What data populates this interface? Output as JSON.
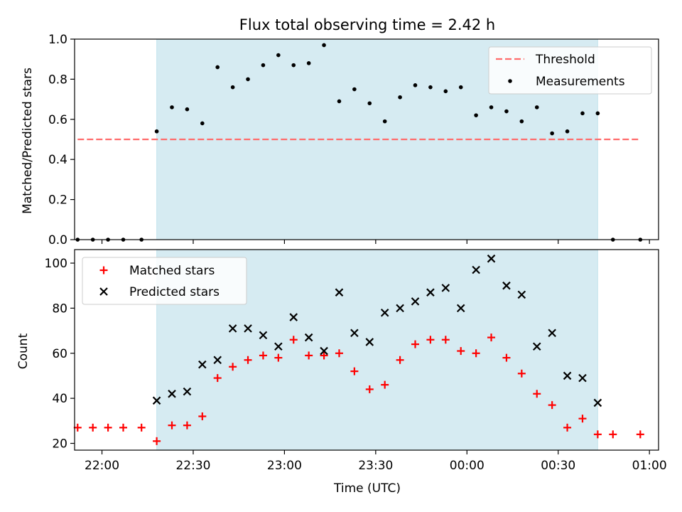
{
  "chart_data": [
    {
      "type": "scatter",
      "title": "Flux total observing time = 2.42 h",
      "xlabel": "",
      "ylabel": "Matched/Predicted stars",
      "xlim": [
        "21:51",
        "01:03"
      ],
      "ylim": [
        0,
        1.0
      ],
      "yticks": [
        "0.0",
        "0.2",
        "0.4",
        "0.6",
        "0.8",
        "1.0"
      ],
      "xticks": [
        "22:00",
        "22:30",
        "23:00",
        "23:30",
        "00:00",
        "00:30",
        "01:00"
      ],
      "shaded_span": [
        "22:18",
        "00:43"
      ],
      "shade_color": "#add8e6",
      "threshold": {
        "name": "Threshold",
        "value": 0.5,
        "x": [
          "21:52",
          "00:57"
        ],
        "color": "#ff6b6b",
        "style": "dashed"
      },
      "legend": {
        "placement": "top-right",
        "entries": [
          "Threshold",
          "Measurements"
        ]
      },
      "series": [
        {
          "name": "Measurements",
          "marker": "dot",
          "color": "#000000",
          "points": [
            [
              "21:52",
              0.0
            ],
            [
              "21:57",
              0.0
            ],
            [
              "22:02",
              0.0
            ],
            [
              "22:07",
              0.0
            ],
            [
              "22:13",
              0.0
            ],
            [
              "22:18",
              0.54
            ],
            [
              "22:23",
              0.66
            ],
            [
              "22:28",
              0.65
            ],
            [
              "22:33",
              0.58
            ],
            [
              "22:38",
              0.86
            ],
            [
              "22:43",
              0.76
            ],
            [
              "22:48",
              0.8
            ],
            [
              "22:53",
              0.87
            ],
            [
              "22:58",
              0.92
            ],
            [
              "23:03",
              0.87
            ],
            [
              "23:08",
              0.88
            ],
            [
              "23:13",
              0.97
            ],
            [
              "23:18",
              0.69
            ],
            [
              "23:23",
              0.75
            ],
            [
              "23:28",
              0.68
            ],
            [
              "23:33",
              0.59
            ],
            [
              "23:38",
              0.71
            ],
            [
              "23:43",
              0.77
            ],
            [
              "23:48",
              0.76
            ],
            [
              "23:53",
              0.74
            ],
            [
              "23:58",
              0.76
            ],
            [
              "00:03",
              0.62
            ],
            [
              "00:08",
              0.66
            ],
            [
              "00:13",
              0.64
            ],
            [
              "00:18",
              0.59
            ],
            [
              "00:23",
              0.66
            ],
            [
              "00:28",
              0.53
            ],
            [
              "00:33",
              0.54
            ],
            [
              "00:38",
              0.63
            ],
            [
              "00:43",
              0.63
            ],
            [
              "00:48",
              0.0
            ],
            [
              "00:57",
              0.0
            ]
          ]
        }
      ]
    },
    {
      "type": "scatter",
      "title": "",
      "xlabel": "Time (UTC)",
      "ylabel": "Count",
      "xlim": [
        "21:51",
        "01:03"
      ],
      "ylim": [
        17,
        106
      ],
      "yticks": [
        "20",
        "40",
        "60",
        "80",
        "100"
      ],
      "xticks": [
        "22:00",
        "22:30",
        "23:00",
        "23:30",
        "00:00",
        "00:30",
        "01:00"
      ],
      "shaded_span": [
        "22:18",
        "00:43"
      ],
      "shade_color": "#add8e6",
      "legend": {
        "placement": "top-left",
        "entries": [
          "Matched stars",
          "Predicted stars"
        ]
      },
      "series": [
        {
          "name": "Matched stars",
          "marker": "plus",
          "color": "#ff0000",
          "points": [
            [
              "21:52",
              27
            ],
            [
              "21:57",
              27
            ],
            [
              "22:02",
              27
            ],
            [
              "22:07",
              27
            ],
            [
              "22:13",
              27
            ],
            [
              "22:18",
              21
            ],
            [
              "22:23",
              28
            ],
            [
              "22:28",
              28
            ],
            [
              "22:33",
              32
            ],
            [
              "22:38",
              49
            ],
            [
              "22:43",
              54
            ],
            [
              "22:48",
              57
            ],
            [
              "22:53",
              59
            ],
            [
              "22:58",
              58
            ],
            [
              "23:03",
              66
            ],
            [
              "23:08",
              59
            ],
            [
              "23:13",
              59
            ],
            [
              "23:18",
              60
            ],
            [
              "23:23",
              52
            ],
            [
              "23:28",
              44
            ],
            [
              "23:33",
              46
            ],
            [
              "23:38",
              57
            ],
            [
              "23:43",
              64
            ],
            [
              "23:48",
              66
            ],
            [
              "23:53",
              66
            ],
            [
              "23:58",
              61
            ],
            [
              "00:03",
              60
            ],
            [
              "00:08",
              67
            ],
            [
              "00:13",
              58
            ],
            [
              "00:18",
              51
            ],
            [
              "00:23",
              42
            ],
            [
              "00:28",
              37
            ],
            [
              "00:33",
              27
            ],
            [
              "00:38",
              31
            ],
            [
              "00:43",
              24
            ],
            [
              "00:48",
              24
            ],
            [
              "00:57",
              24
            ]
          ]
        },
        {
          "name": "Predicted stars",
          "marker": "x",
          "color": "#000000",
          "points": [
            [
              "22:18",
              39
            ],
            [
              "22:23",
              42
            ],
            [
              "22:28",
              43
            ],
            [
              "22:33",
              55
            ],
            [
              "22:38",
              57
            ],
            [
              "22:43",
              71
            ],
            [
              "22:48",
              71
            ],
            [
              "22:53",
              68
            ],
            [
              "22:58",
              63
            ],
            [
              "23:03",
              76
            ],
            [
              "23:08",
              67
            ],
            [
              "23:13",
              61
            ],
            [
              "23:18",
              87
            ],
            [
              "23:23",
              69
            ],
            [
              "23:28",
              65
            ],
            [
              "23:33",
              78
            ],
            [
              "23:38",
              80
            ],
            [
              "23:43",
              83
            ],
            [
              "23:48",
              87
            ],
            [
              "23:53",
              89
            ],
            [
              "23:58",
              80
            ],
            [
              "00:03",
              97
            ],
            [
              "00:08",
              102
            ],
            [
              "00:13",
              90
            ],
            [
              "00:18",
              86
            ],
            [
              "00:23",
              63
            ],
            [
              "00:28",
              69
            ],
            [
              "00:33",
              50
            ],
            [
              "00:38",
              49
            ],
            [
              "00:43",
              38
            ]
          ]
        }
      ]
    }
  ]
}
